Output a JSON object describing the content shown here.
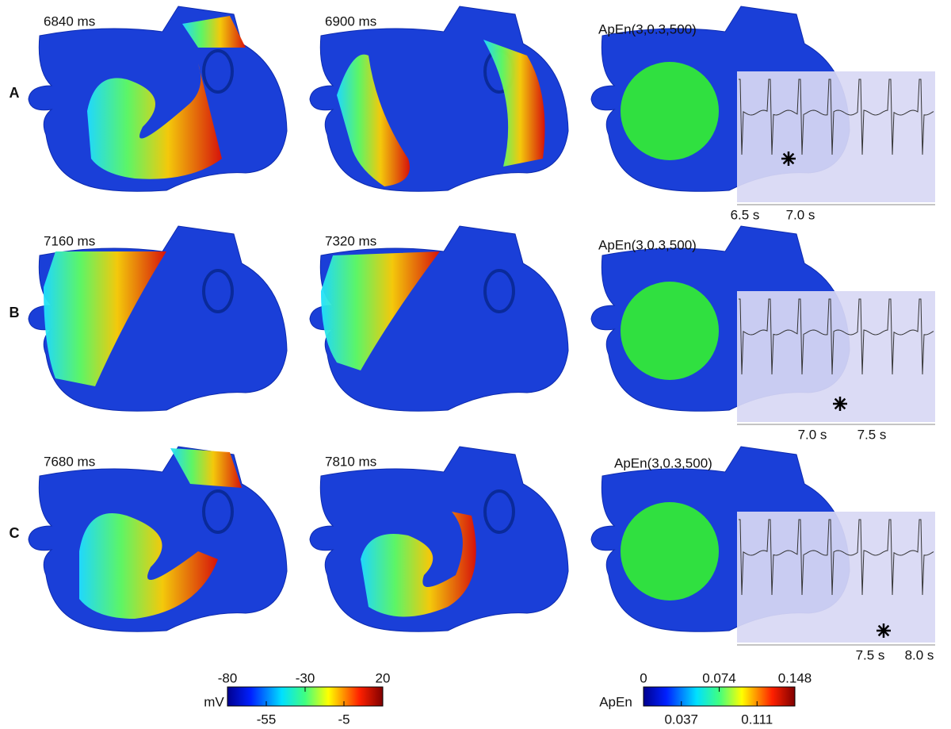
{
  "rows": [
    {
      "label": "A",
      "times": [
        "6840 ms",
        "6900 ms"
      ],
      "apen": "ApEn(3,0.3,500)",
      "ecg_ticks": [
        "6.5 s",
        "7.0 s"
      ]
    },
    {
      "label": "B",
      "times": [
        "7160 ms",
        "7320 ms"
      ],
      "apen": "ApEn(3,0.3,500)",
      "ecg_ticks": [
        "7.0 s",
        "7.5 s"
      ]
    },
    {
      "label": "C",
      "times": [
        "7680 ms",
        "7810 ms"
      ],
      "apen": "ApEn(3,0.3,500)",
      "ecg_ticks": [
        "7.5 s",
        "8.0 s"
      ]
    }
  ],
  "colorbars": [
    {
      "label": "mV",
      "lim": [
        -80,
        20
      ],
      "ticks_top": [
        -80,
        -30,
        20
      ],
      "ticks_bottom": [
        -55,
        -5
      ]
    },
    {
      "label": "ApEn",
      "lim": [
        0,
        0.148
      ],
      "ticks_top": [
        0,
        0.074,
        0.148
      ],
      "ticks_bottom": [
        0.037,
        0.111
      ]
    }
  ]
}
